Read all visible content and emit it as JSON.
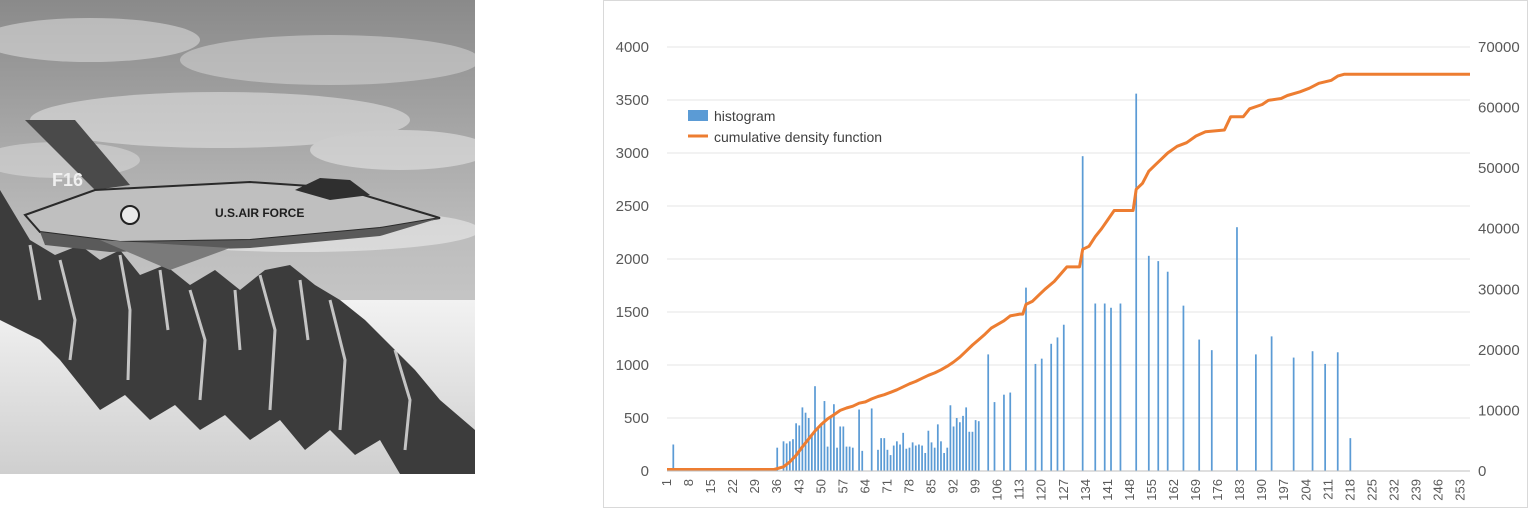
{
  "photo": {
    "aircraft_marking_tail": "F16",
    "aircraft_marking_fuselage": "U.S.AIR FORCE"
  },
  "colors": {
    "histogram": "#5b9bd5",
    "cdf": "#ed7d31",
    "grid": "#e6e6e6",
    "axis_text": "#595959"
  },
  "chart_data": {
    "type": "bar+line",
    "title": "",
    "xlabel": "",
    "ylabel": "",
    "x_range": [
      1,
      256
    ],
    "x_tick_labels": [
      "1",
      "8",
      "15",
      "22",
      "29",
      "36",
      "43",
      "50",
      "57",
      "64",
      "71",
      "78",
      "85",
      "92",
      "99",
      "106",
      "113",
      "120",
      "127",
      "134",
      "141",
      "148",
      "155",
      "162",
      "169",
      "176",
      "183",
      "190",
      "197",
      "204",
      "211",
      "218",
      "225",
      "232",
      "239",
      "246",
      "253"
    ],
    "y_left": {
      "min": 0,
      "max": 4000,
      "ticks": [
        "0",
        "500",
        "1000",
        "1500",
        "2000",
        "2500",
        "3000",
        "3500",
        "4000"
      ]
    },
    "y_right": {
      "min": 0,
      "max": 70000,
      "ticks": [
        "0",
        "10000",
        "20000",
        "30000",
        "40000",
        "50000",
        "60000",
        "70000"
      ]
    },
    "grid": true,
    "legend_position": "top-left",
    "legend": [
      "histogram",
      "cumulative density function"
    ],
    "series": [
      {
        "name": "histogram",
        "type": "bar",
        "axis": "left",
        "points": [
          [
            3,
            250
          ],
          [
            36,
            220
          ],
          [
            38,
            280
          ],
          [
            39,
            260
          ],
          [
            40,
            280
          ],
          [
            41,
            300
          ],
          [
            42,
            450
          ],
          [
            43,
            430
          ],
          [
            44,
            600
          ],
          [
            45,
            550
          ],
          [
            46,
            500
          ],
          [
            47,
            350
          ],
          [
            48,
            800
          ],
          [
            49,
            420
          ],
          [
            50,
            430
          ],
          [
            51,
            660
          ],
          [
            52,
            230
          ],
          [
            53,
            500
          ],
          [
            54,
            630
          ],
          [
            55,
            220
          ],
          [
            56,
            420
          ],
          [
            57,
            420
          ],
          [
            58,
            230
          ],
          [
            59,
            230
          ],
          [
            60,
            220
          ],
          [
            62,
            580
          ],
          [
            63,
            190
          ],
          [
            66,
            590
          ],
          [
            68,
            200
          ],
          [
            69,
            310
          ],
          [
            70,
            310
          ],
          [
            71,
            200
          ],
          [
            72,
            150
          ],
          [
            73,
            240
          ],
          [
            74,
            280
          ],
          [
            75,
            250
          ],
          [
            76,
            360
          ],
          [
            77,
            210
          ],
          [
            78,
            220
          ],
          [
            79,
            270
          ],
          [
            80,
            240
          ],
          [
            81,
            250
          ],
          [
            82,
            240
          ],
          [
            83,
            170
          ],
          [
            84,
            380
          ],
          [
            85,
            270
          ],
          [
            86,
            220
          ],
          [
            87,
            440
          ],
          [
            88,
            280
          ],
          [
            89,
            170
          ],
          [
            90,
            220
          ],
          [
            91,
            620
          ],
          [
            92,
            420
          ],
          [
            93,
            500
          ],
          [
            94,
            460
          ],
          [
            95,
            520
          ],
          [
            96,
            600
          ],
          [
            97,
            370
          ],
          [
            98,
            370
          ],
          [
            99,
            480
          ],
          [
            100,
            470
          ],
          [
            103,
            1100
          ],
          [
            105,
            650
          ],
          [
            108,
            720
          ],
          [
            110,
            740
          ],
          [
            115,
            1730
          ],
          [
            118,
            1010
          ],
          [
            120,
            1060
          ],
          [
            123,
            1200
          ],
          [
            125,
            1260
          ],
          [
            127,
            1380
          ],
          [
            133,
            2970
          ],
          [
            137,
            1580
          ],
          [
            140,
            1580
          ],
          [
            142,
            1540
          ],
          [
            145,
            1580
          ],
          [
            150,
            3560
          ],
          [
            154,
            2030
          ],
          [
            157,
            1980
          ],
          [
            160,
            1880
          ],
          [
            165,
            1560
          ],
          [
            170,
            1240
          ],
          [
            174,
            1140
          ],
          [
            182,
            2300
          ],
          [
            188,
            1100
          ],
          [
            193,
            1270
          ],
          [
            200,
            1070
          ],
          [
            206,
            1130
          ],
          [
            210,
            1010
          ],
          [
            214,
            1120
          ],
          [
            218,
            310
          ]
        ]
      },
      {
        "name": "cumulative density function",
        "type": "line",
        "axis": "right",
        "points": [
          [
            1,
            250
          ],
          [
            35,
            250
          ],
          [
            38,
            700
          ],
          [
            40,
            1500
          ],
          [
            42,
            2600
          ],
          [
            44,
            4000
          ],
          [
            46,
            5300
          ],
          [
            48,
            6600
          ],
          [
            50,
            7700
          ],
          [
            52,
            8600
          ],
          [
            54,
            9300
          ],
          [
            56,
            10000
          ],
          [
            58,
            10400
          ],
          [
            60,
            10700
          ],
          [
            62,
            11200
          ],
          [
            64,
            11400
          ],
          [
            66,
            11900
          ],
          [
            68,
            12300
          ],
          [
            70,
            12600
          ],
          [
            72,
            13000
          ],
          [
            74,
            13400
          ],
          [
            76,
            13900
          ],
          [
            78,
            14400
          ],
          [
            80,
            14800
          ],
          [
            82,
            15300
          ],
          [
            84,
            15800
          ],
          [
            86,
            16200
          ],
          [
            88,
            16700
          ],
          [
            90,
            17300
          ],
          [
            92,
            18000
          ],
          [
            94,
            18800
          ],
          [
            96,
            19800
          ],
          [
            98,
            20800
          ],
          [
            100,
            21700
          ],
          [
            102,
            22600
          ],
          [
            104,
            23600
          ],
          [
            106,
            24200
          ],
          [
            108,
            24800
          ],
          [
            110,
            25600
          ],
          [
            113,
            25900
          ],
          [
            114,
            25900
          ],
          [
            115,
            27500
          ],
          [
            117,
            28000
          ],
          [
            119,
            29000
          ],
          [
            121,
            30000
          ],
          [
            124,
            31300
          ],
          [
            126,
            32500
          ],
          [
            128,
            33700
          ],
          [
            132,
            33700
          ],
          [
            133,
            36600
          ],
          [
            135,
            37100
          ],
          [
            137,
            38700
          ],
          [
            139,
            40000
          ],
          [
            141,
            41500
          ],
          [
            143,
            43000
          ],
          [
            149,
            43000
          ],
          [
            150,
            46500
          ],
          [
            152,
            47500
          ],
          [
            154,
            49500
          ],
          [
            156,
            50500
          ],
          [
            158,
            51500
          ],
          [
            160,
            52500
          ],
          [
            163,
            53600
          ],
          [
            166,
            54200
          ],
          [
            169,
            55300
          ],
          [
            172,
            56000
          ],
          [
            178,
            56300
          ],
          [
            180,
            58500
          ],
          [
            184,
            58500
          ],
          [
            186,
            59800
          ],
          [
            190,
            60500
          ],
          [
            192,
            61200
          ],
          [
            196,
            61500
          ],
          [
            198,
            62000
          ],
          [
            202,
            62600
          ],
          [
            205,
            63200
          ],
          [
            208,
            64000
          ],
          [
            212,
            64500
          ],
          [
            214,
            65200
          ],
          [
            216,
            65500
          ],
          [
            256,
            65500
          ]
        ]
      }
    ]
  }
}
